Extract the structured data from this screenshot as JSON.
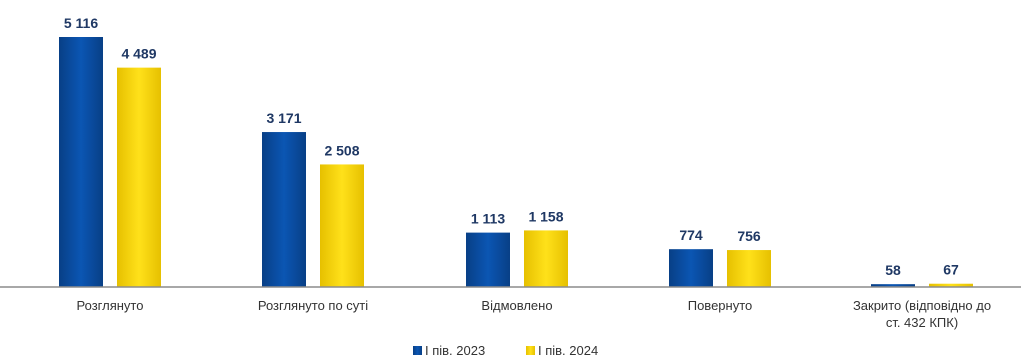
{
  "chart_data": {
    "type": "bar",
    "categories": [
      [
        "Розглянуто"
      ],
      [
        "Розглянуто по суті"
      ],
      [
        "Відмовлено"
      ],
      [
        "Повернуто"
      ],
      [
        "Закрито (відповідно до",
        "ст. 432 КПК)"
      ]
    ],
    "series": [
      {
        "name": "І пів. 2023",
        "values": [
          5116,
          3171,
          1113,
          774,
          58
        ],
        "labels": [
          "5 116",
          "3 171",
          "1 113",
          "774",
          "58"
        ],
        "color": "#0a4ea3"
      },
      {
        "name": "І пів. 2024",
        "values": [
          4489,
          2508,
          1158,
          756,
          67
        ],
        "labels": [
          "4 489",
          "2 508",
          "1 158",
          "756",
          "67"
        ],
        "color": "#ffd800"
      }
    ],
    "ylim": [
      0,
      5116
    ],
    "grid": false,
    "legend_position": "bottom-center"
  }
}
